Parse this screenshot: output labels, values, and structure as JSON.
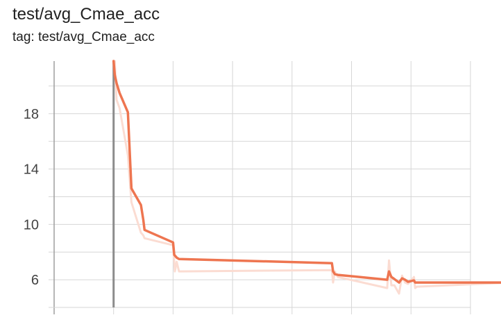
{
  "header": {
    "title": "test/avg_Cmae_acc",
    "tag": "tag: test/avg_Cmae_acc"
  },
  "colors": {
    "series": "#ee7550",
    "raw_series": "#fbdcd2",
    "grid": "#d6d6d6",
    "axis": "#9e9e9e",
    "tick_text": "#424242"
  },
  "chart_data": {
    "type": "line",
    "title": "test/avg_Cmae_acc",
    "xlabel": "",
    "ylabel": "",
    "xlim": [
      0,
      7
    ],
    "ylim": [
      4,
      21.8
    ],
    "yticks": [
      6,
      10,
      14,
      18
    ],
    "grid": true,
    "legend": "none",
    "series": [
      {
        "role": "smoothed",
        "x": [
          0.0,
          0.02,
          0.05,
          0.1,
          0.24,
          0.3,
          0.46,
          0.5,
          0.52,
          1.0,
          1.02,
          1.06,
          1.1,
          3.67,
          3.69,
          3.72,
          3.77,
          4.6,
          4.63,
          4.67,
          4.72,
          4.8,
          4.85,
          4.9,
          4.95,
          5.05,
          5.07,
          5.1,
          6.7
        ],
        "y": [
          22.0,
          20.8,
          20.2,
          19.5,
          18.1,
          12.6,
          11.4,
          10.3,
          9.6,
          8.7,
          7.8,
          7.6,
          7.5,
          7.2,
          6.6,
          6.4,
          6.35,
          6.0,
          6.6,
          6.2,
          6.05,
          5.8,
          6.1,
          6.0,
          5.85,
          5.95,
          5.8,
          5.8,
          5.8
        ]
      },
      {
        "role": "raw",
        "x": [
          0.02,
          0.05,
          0.1,
          0.24,
          0.3,
          0.46,
          0.5,
          0.52,
          1.0,
          1.03,
          1.06,
          1.1,
          3.67,
          3.69,
          3.72,
          3.77,
          4.6,
          4.63,
          4.67,
          4.72,
          4.8,
          4.85,
          4.9,
          4.95,
          5.05,
          5.07,
          5.1,
          6.7
        ],
        "y": [
          21.8,
          19.0,
          18.4,
          15.0,
          11.6,
          9.4,
          9.2,
          9.0,
          8.5,
          6.6,
          7.3,
          6.6,
          6.7,
          5.8,
          6.6,
          6.2,
          5.4,
          7.4,
          5.6,
          5.6,
          5.0,
          6.3,
          5.8,
          5.7,
          6.2,
          5.4,
          5.5,
          5.8
        ]
      }
    ]
  }
}
